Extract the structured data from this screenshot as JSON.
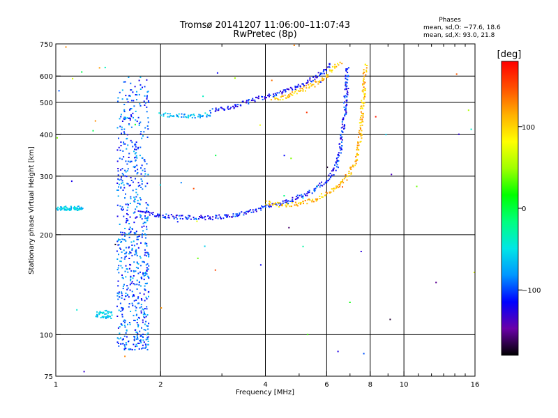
{
  "chart_data": {
    "type": "scatter",
    "title": "Tromsø 20141207 11:06:00–11:07:43",
    "subtitle": "RwPretec (8p)",
    "xlabel": "Frequency [MHz]",
    "ylabel": "Stationary phase Virtual Height [km]",
    "x_scale": "log",
    "y_scale": "log",
    "xlim": [
      1,
      16
    ],
    "ylim": [
      75,
      750
    ],
    "x_ticks": [
      1,
      2,
      4,
      6,
      8,
      10,
      16
    ],
    "x_tick_labels": [
      "1",
      "2",
      "4",
      "6",
      "8",
      "10",
      "16"
    ],
    "x_minor_ticks": [
      3,
      5,
      7,
      9,
      11,
      12,
      13,
      14,
      15
    ],
    "y_ticks": [
      75,
      100,
      200,
      300,
      400,
      500,
      600,
      750
    ],
    "y_tick_labels": [
      "75",
      "100",
      "200",
      "300",
      "400",
      "500",
      "600",
      "750"
    ],
    "grid": true,
    "stats": {
      "heading": "Phases",
      "o_mode": "mean, sd,O: −77.6, 18.6",
      "x_mode": "mean, sd,X:  93.0, 21.8"
    },
    "colorbar": {
      "label": "[deg]",
      "range": [
        -180,
        180
      ],
      "ticks": [
        100,
        0,
        -100
      ],
      "tick_labels": [
        "100",
        "0",
        "−100"
      ],
      "colors": [
        "#000000",
        "#6a00a8",
        "#0000ff",
        "#0096ff",
        "#00e6e6",
        "#00ff7f",
        "#00ff00",
        "#a0ff00",
        "#ffff00",
        "#ffb000",
        "#ff5000",
        "#ff0000"
      ]
    },
    "traces": [
      {
        "name_hint": "F-region O-mode lower",
        "phase": -110,
        "points": [
          [
            1.75,
            235
          ],
          [
            2.0,
            228
          ],
          [
            2.4,
            225
          ],
          [
            2.8,
            225
          ],
          [
            3.2,
            228
          ],
          [
            3.6,
            234
          ],
          [
            4.0,
            242
          ],
          [
            4.5,
            250
          ],
          [
            5.0,
            260
          ],
          [
            5.5,
            272
          ],
          [
            6.0,
            290
          ],
          [
            6.4,
            320
          ],
          [
            6.6,
            380
          ],
          [
            6.75,
            460
          ],
          [
            6.85,
            560
          ],
          [
            6.9,
            640
          ]
        ]
      },
      {
        "name_hint": "F-region O-mode upper",
        "phase": -115,
        "points": [
          [
            2.8,
            470
          ],
          [
            3.2,
            485
          ],
          [
            3.6,
            505
          ],
          [
            4.0,
            520
          ],
          [
            4.5,
            540
          ],
          [
            5.0,
            560
          ],
          [
            5.5,
            590
          ],
          [
            6.0,
            630
          ],
          [
            6.2,
            650
          ]
        ]
      },
      {
        "name_hint": "F-region X-mode lower",
        "phase": 110,
        "points": [
          [
            4.0,
            250
          ],
          [
            4.5,
            245
          ],
          [
            5.0,
            248
          ],
          [
            5.5,
            255
          ],
          [
            6.0,
            265
          ],
          [
            6.5,
            280
          ],
          [
            7.0,
            305
          ],
          [
            7.3,
            340
          ],
          [
            7.5,
            400
          ],
          [
            7.6,
            480
          ],
          [
            7.7,
            570
          ],
          [
            7.75,
            650
          ]
        ]
      },
      {
        "name_hint": "F-region X-mode upper",
        "phase": 105,
        "points": [
          [
            4.2,
            510
          ],
          [
            4.6,
            520
          ],
          [
            5.0,
            540
          ],
          [
            5.5,
            565
          ],
          [
            6.0,
            600
          ],
          [
            6.3,
            640
          ],
          [
            6.6,
            660
          ]
        ]
      },
      {
        "name_hint": "E-region band",
        "phase": -70,
        "points": [
          [
            2.0,
            460
          ],
          [
            2.3,
            455
          ],
          [
            2.6,
            455
          ],
          [
            2.8,
            460
          ]
        ]
      },
      {
        "name_hint": "vertical cluster",
        "phase": -95,
        "points": [
          [
            1.5,
            90
          ],
          [
            1.5,
            600
          ],
          [
            1.85,
            90
          ],
          [
            1.85,
            600
          ]
        ]
      },
      {
        "name_hint": "low-frequency cluster",
        "phase": -60,
        "points": [
          [
            1.0,
            240
          ],
          [
            1.2,
            245
          ],
          [
            1.3,
            115
          ],
          [
            1.45,
            120
          ]
        ]
      }
    ]
  }
}
